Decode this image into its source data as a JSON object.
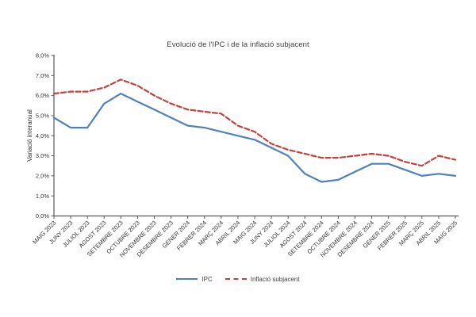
{
  "chart": {
    "title": "Evolució de l'IPC i de la inflació subjacent",
    "y_axis_label": "Variació interanual"
  },
  "chart_data": {
    "type": "line",
    "title": "Evolució de l'IPC i de la inflació subjacent",
    "xlabel": "",
    "ylabel": "Variació interanual",
    "ylim": [
      0,
      8
    ],
    "ytick_step": 1,
    "ytick_labels": [
      "0,0%",
      "1,0%",
      "2,0%",
      "3,0%",
      "4,0%",
      "5,0%",
      "6,0%",
      "7,0%",
      "8,0%"
    ],
    "grid": false,
    "legend_position": "bottom",
    "categories": [
      "MAIG 2023",
      "JUNY 2023",
      "JULIOL 2023",
      "AGOST 2023",
      "SETEMBRE 2023",
      "OCTUBRE 2023",
      "NOVEMBRE 2023",
      "DESEMBRE 2023",
      "GENER 2024",
      "FEBRER 2024",
      "MARÇ 2024",
      "ABRIL 2024",
      "MAIG 2024",
      "JUNY 2024",
      "JULIOL 2024",
      "AGOST 2024",
      "SETEMBRE 2024",
      "OCTUBRE 2024",
      "NOVEMBRE 2024",
      "DESEMBRE 2024",
      "GENER 2025",
      "FEBRER 2025",
      "MARÇ 2025",
      "ABRIL 2025",
      "MAIG 2025"
    ],
    "series": [
      {
        "name": "IPC",
        "color": "#4F81BD",
        "style": "solid",
        "values": [
          4.9,
          4.4,
          4.4,
          5.6,
          6.1,
          5.7,
          5.3,
          4.9,
          4.5,
          4.4,
          4.2,
          4.0,
          3.8,
          3.4,
          3.0,
          2.1,
          1.7,
          1.8,
          2.2,
          2.6,
          2.6,
          2.3,
          2.0,
          2.1,
          2.0
        ]
      },
      {
        "name": "Inflació subjacent",
        "color": "#C4423B",
        "style": "dashed",
        "values": [
          6.1,
          6.2,
          6.2,
          6.4,
          6.8,
          6.5,
          6.0,
          5.6,
          5.3,
          5.2,
          5.1,
          4.5,
          4.2,
          3.6,
          3.3,
          3.1,
          2.9,
          2.9,
          3.0,
          3.1,
          3.0,
          2.7,
          2.5,
          3.0,
          2.8
        ]
      }
    ]
  },
  "colors": {
    "ipc": "#4F81BD",
    "subjacent": "#C4423B",
    "axis": "#595959",
    "text": "#333333"
  }
}
